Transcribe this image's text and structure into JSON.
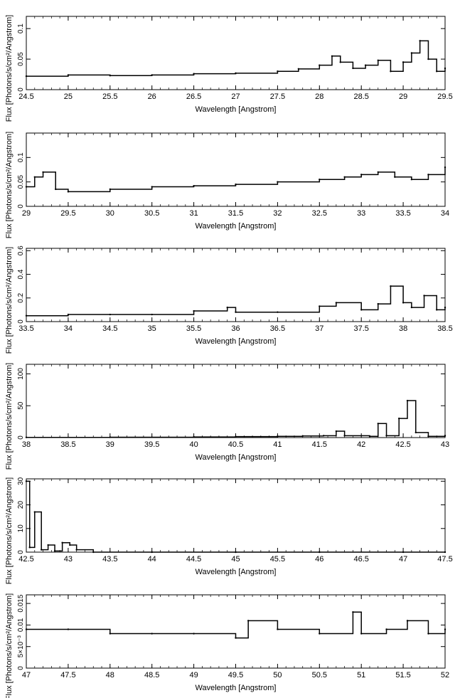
{
  "chart_data": [
    {
      "type": "line",
      "xlabel": "Wavelength [Angstrom]",
      "ylabel": "Flux [Photons/s/cm²/Angstrom]",
      "xlim": [
        24.5,
        29.5
      ],
      "ylim": [
        0,
        0.12
      ],
      "xticks": [
        24.5,
        25,
        25.5,
        26,
        26.5,
        27,
        27.5,
        28,
        28.5,
        29,
        29.5
      ],
      "xtick_labels": [
        "24.5",
        "25",
        "25.5",
        "26",
        "26.5",
        "27",
        "27.5",
        "28",
        "28.5",
        "29",
        "29.5"
      ],
      "yticks": [
        0,
        0.05,
        0.1
      ],
      "ytick_labels": [
        "0",
        "0.05",
        "0.1"
      ],
      "series": [
        {
          "x": [
            24.5,
            25,
            25.5,
            26,
            26.5,
            27,
            27.5,
            27.75,
            28,
            28.15,
            28.25,
            28.4,
            28.55,
            28.7,
            28.85,
            29,
            29.1,
            29.2,
            29.3,
            29.4,
            29.5
          ],
          "y": [
            0.022,
            0.024,
            0.023,
            0.024,
            0.026,
            0.027,
            0.03,
            0.034,
            0.04,
            0.055,
            0.045,
            0.035,
            0.04,
            0.048,
            0.03,
            0.045,
            0.06,
            0.08,
            0.05,
            0.03,
            0.035
          ]
        }
      ]
    },
    {
      "type": "line",
      "xlabel": "Wavelength [Angstrom]",
      "ylabel": "Flux [Photons/s/cm²/Angstrom]",
      "xlim": [
        29,
        34
      ],
      "ylim": [
        0,
        0.15
      ],
      "xticks": [
        29,
        29.5,
        30,
        30.5,
        31,
        31.5,
        32,
        32.5,
        33,
        33.5,
        34
      ],
      "xtick_labels": [
        "29",
        "29.5",
        "30",
        "30.5",
        "31",
        "31.5",
        "32",
        "32.5",
        "33",
        "33.5",
        "34"
      ],
      "yticks": [
        0,
        0.05,
        0.1
      ],
      "ytick_labels": [
        "0",
        "0.05",
        "0.1"
      ],
      "series": [
        {
          "x": [
            29,
            29.1,
            29.2,
            29.35,
            29.5,
            30,
            30.5,
            31,
            31.5,
            32,
            32.5,
            32.8,
            33,
            33.2,
            33.4,
            33.6,
            33.8,
            34
          ],
          "y": [
            0.04,
            0.06,
            0.07,
            0.035,
            0.03,
            0.035,
            0.04,
            0.042,
            0.045,
            0.05,
            0.055,
            0.06,
            0.065,
            0.07,
            0.06,
            0.055,
            0.065,
            0.08
          ]
        }
      ]
    },
    {
      "type": "line",
      "xlabel": "Wavelength [Angstrom]",
      "ylabel": "Flux [Photons/s/cm²/Angstrom]",
      "xlim": [
        33.5,
        38.5
      ],
      "ylim": [
        0,
        0.62
      ],
      "xticks": [
        33.5,
        34,
        34.5,
        35,
        35.5,
        36,
        36.5,
        37,
        37.5,
        38,
        38.5
      ],
      "xtick_labels": [
        "33.5",
        "34",
        "34.5",
        "35",
        "35.5",
        "36",
        "36.5",
        "37",
        "37.5",
        "38",
        "38.5"
      ],
      "yticks": [
        0,
        0.2,
        0.4,
        0.6
      ],
      "ytick_labels": [
        "0",
        "0.2",
        "0.4",
        "0.6"
      ],
      "series": [
        {
          "x": [
            33.5,
            34,
            34.5,
            35,
            35.5,
            35.9,
            36,
            36.5,
            37,
            37.2,
            37.5,
            37.7,
            37.85,
            38,
            38.1,
            38.25,
            38.4,
            38.5
          ],
          "y": [
            0.05,
            0.06,
            0.06,
            0.06,
            0.09,
            0.12,
            0.08,
            0.08,
            0.13,
            0.16,
            0.1,
            0.15,
            0.3,
            0.16,
            0.12,
            0.22,
            0.1,
            0.12
          ]
        }
      ]
    },
    {
      "type": "line",
      "xlabel": "Wavelength [Angstrom]",
      "ylabel": "Flux [Photons/s/cm²/Angstrom]",
      "xlim": [
        38,
        43
      ],
      "ylim": [
        0,
        115
      ],
      "xticks": [
        38,
        38.5,
        39,
        39.5,
        40,
        40.5,
        41,
        41.5,
        42,
        42.5,
        43
      ],
      "xtick_labels": [
        "38",
        "38.5",
        "39",
        "39.5",
        "40",
        "40.5",
        "41",
        "41.5",
        "42",
        "42.5",
        "43"
      ],
      "yticks": [
        0,
        50,
        100
      ],
      "ytick_labels": [
        "0",
        "50",
        "100"
      ],
      "series": [
        {
          "x": [
            38,
            39,
            40,
            40.5,
            41,
            41.3,
            41.55,
            41.7,
            41.8,
            42.1,
            42.2,
            42.3,
            42.45,
            42.55,
            42.65,
            42.8,
            43
          ],
          "y": [
            0.3,
            0.5,
            1,
            1.5,
            2,
            2.5,
            3,
            10,
            3,
            2,
            22,
            3,
            30,
            58,
            8,
            2,
            3
          ]
        }
      ]
    },
    {
      "type": "line",
      "xlabel": "Wavelength [Angstrom]",
      "ylabel": "Flux [Photons/s/cm²/Angstrom]",
      "xlim": [
        42.5,
        47.5
      ],
      "ylim": [
        0,
        31
      ],
      "xticks": [
        42.5,
        43,
        43.5,
        44,
        44.5,
        45,
        45.5,
        46,
        46.5,
        47,
        47.5
      ],
      "xtick_labels": [
        "42.5",
        "43",
        "43.5",
        "44",
        "44.5",
        "45",
        "45.5",
        "46",
        "46.5",
        "47",
        "47.5"
      ],
      "yticks": [
        0,
        10,
        20,
        30
      ],
      "ytick_labels": [
        "0",
        "10",
        "20",
        "30"
      ],
      "series": [
        {
          "x": [
            42.5,
            42.54,
            42.6,
            42.68,
            42.76,
            42.84,
            42.93,
            43.02,
            43.1,
            43.3,
            44,
            45,
            46,
            47,
            47.5
          ],
          "y": [
            30,
            2,
            17,
            1,
            3,
            0.5,
            4,
            3,
            1,
            0,
            0,
            0,
            0,
            0,
            0
          ]
        }
      ]
    },
    {
      "type": "line",
      "xlabel": "Wavelength [Angstrom]",
      "ylabel": "Flux [Photons/s/cm²/Angstrom]",
      "xlim": [
        47,
        52
      ],
      "ylim": [
        0,
        0.017
      ],
      "xticks": [
        47,
        47.5,
        48,
        48.5,
        49,
        49.5,
        50,
        50.5,
        51,
        51.5,
        52
      ],
      "xtick_labels": [
        "47",
        "47.5",
        "48",
        "48.5",
        "49",
        "49.5",
        "50",
        "50.5",
        "51",
        "51.5",
        "52"
      ],
      "yticks": [
        0,
        0.005,
        0.01,
        0.015
      ],
      "ytick_labels": [
        "0",
        "5×10⁻³",
        "0.01",
        "0.015"
      ],
      "series": [
        {
          "x": [
            47,
            47.5,
            48,
            48.5,
            49,
            49.5,
            49.65,
            50,
            50.5,
            50.9,
            51,
            51.3,
            51.55,
            51.8,
            52
          ],
          "y": [
            0.009,
            0.009,
            0.008,
            0.008,
            0.008,
            0.007,
            0.011,
            0.009,
            0.008,
            0.013,
            0.008,
            0.009,
            0.011,
            0.008,
            0.009
          ]
        }
      ]
    }
  ]
}
